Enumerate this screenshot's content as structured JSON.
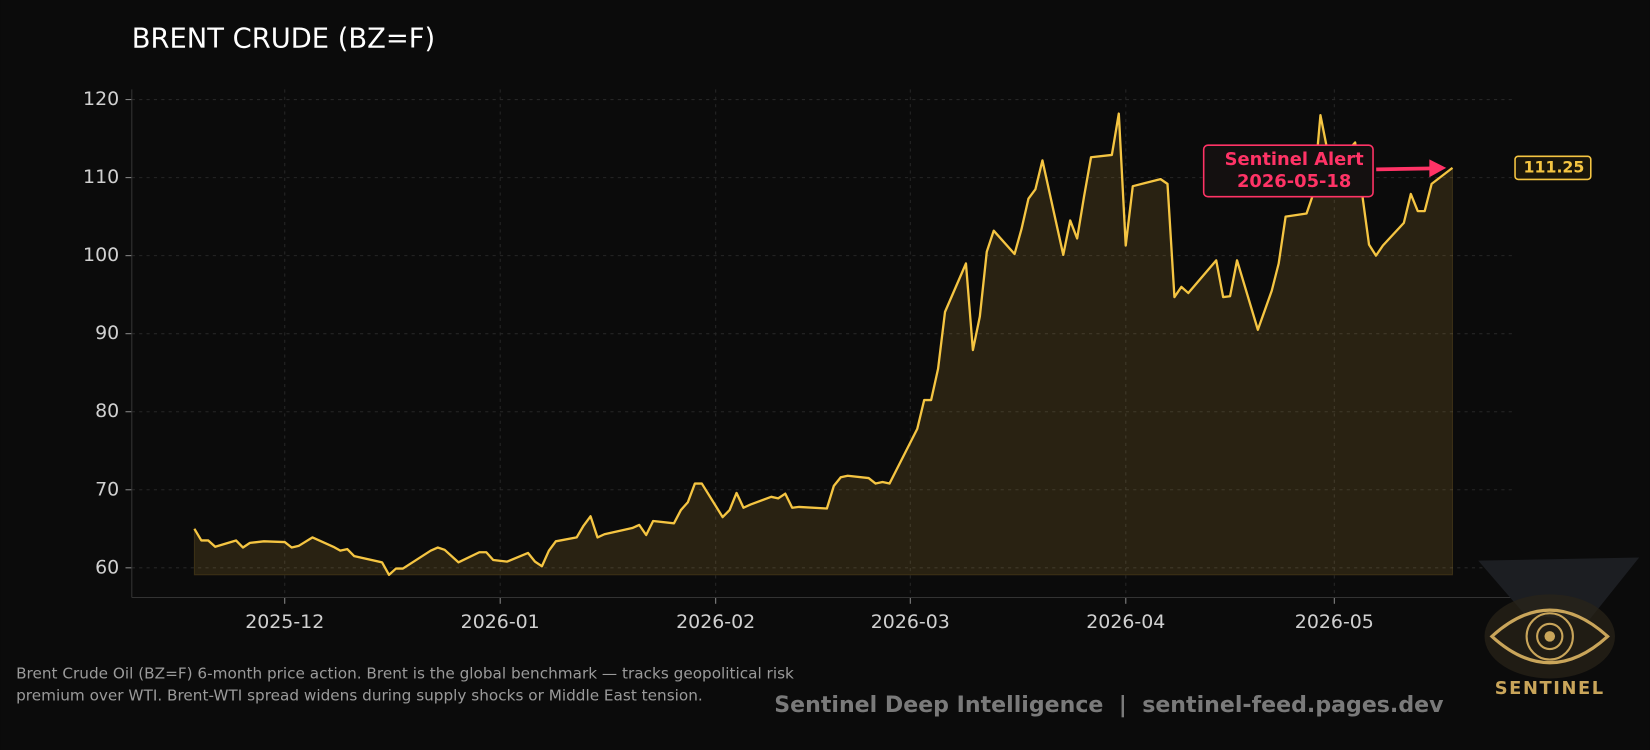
{
  "chart_data": {
    "type": "line",
    "title": "BRENT CRUDE (BZ=F)",
    "color": "#f5c542",
    "x": [
      "2025-11-18",
      "2025-11-19",
      "2025-11-20",
      "2025-11-21",
      "2025-11-24",
      "2025-11-25",
      "2025-11-26",
      "2025-11-28",
      "2025-12-01",
      "2025-12-02",
      "2025-12-03",
      "2025-12-05",
      "2025-12-08",
      "2025-12-09",
      "2025-12-10",
      "2025-12-11",
      "2025-12-15",
      "2025-12-16",
      "2025-12-17",
      "2025-12-18",
      "2025-12-22",
      "2025-12-23",
      "2025-12-24",
      "2025-12-26",
      "2025-12-29",
      "2025-12-30",
      "2025-12-31",
      "2026-01-02",
      "2026-01-05",
      "2026-01-06",
      "2026-01-07",
      "2026-01-08",
      "2026-01-09",
      "2026-01-12",
      "2026-01-13",
      "2026-01-14",
      "2026-01-15",
      "2026-01-16",
      "2026-01-20",
      "2026-01-21",
      "2026-01-22",
      "2026-01-23",
      "2026-01-26",
      "2026-01-27",
      "2026-01-28",
      "2026-01-29",
      "2026-01-30",
      "2026-02-02",
      "2026-02-03",
      "2026-02-04",
      "2026-02-05",
      "2026-02-06",
      "2026-02-09",
      "2026-02-10",
      "2026-02-11",
      "2026-02-12",
      "2026-02-13",
      "2026-02-17",
      "2026-02-18",
      "2026-02-19",
      "2026-02-20",
      "2026-02-23",
      "2026-02-24",
      "2026-02-25",
      "2026-02-26",
      "2026-03-02",
      "2026-03-03",
      "2026-03-04",
      "2026-03-05",
      "2026-03-06",
      "2026-03-09",
      "2026-03-10",
      "2026-03-11",
      "2026-03-12",
      "2026-03-13",
      "2026-03-16",
      "2026-03-17",
      "2026-03-18",
      "2026-03-19",
      "2026-03-20",
      "2026-03-23",
      "2026-03-24",
      "2026-03-25",
      "2026-03-26",
      "2026-03-27",
      "2026-03-30",
      "2026-03-31",
      "2026-04-01",
      "2026-04-02",
      "2026-04-06",
      "2026-04-07",
      "2026-04-08",
      "2026-04-09",
      "2026-04-10",
      "2026-04-14",
      "2026-04-15",
      "2026-04-16",
      "2026-04-17",
      "2026-04-20",
      "2026-04-21",
      "2026-04-22",
      "2026-04-23",
      "2026-04-24",
      "2026-04-27",
      "2026-04-28",
      "2026-04-29",
      "2026-04-30",
      "2026-05-01",
      "2026-05-04",
      "2026-05-06",
      "2026-05-07",
      "2026-05-08",
      "2026-05-11",
      "2026-05-12",
      "2026-05-13",
      "2026-05-14",
      "2026-05-15",
      "2026-05-18"
    ],
    "values": [
      65.0,
      63.5,
      63.5,
      62.7,
      63.5,
      62.6,
      63.2,
      63.4,
      63.3,
      62.6,
      62.8,
      63.9,
      62.7,
      62.2,
      62.4,
      61.5,
      60.7,
      59.1,
      59.9,
      59.9,
      62.2,
      62.6,
      62.3,
      60.7,
      62.0,
      62.0,
      61.0,
      60.8,
      61.9,
      60.8,
      60.2,
      62.2,
      63.4,
      63.9,
      65.4,
      66.6,
      63.9,
      64.3,
      65.1,
      65.5,
      64.2,
      66.0,
      65.7,
      67.4,
      68.4,
      70.8,
      70.8,
      66.5,
      67.4,
      69.6,
      67.7,
      68.1,
      69.1,
      68.9,
      69.5,
      67.7,
      67.8,
      67.6,
      70.5,
      71.6,
      71.8,
      71.5,
      70.8,
      71.0,
      70.8,
      77.8,
      81.5,
      81.5,
      85.5,
      92.8,
      99.0,
      87.9,
      92.2,
      100.5,
      103.2,
      100.2,
      103.4,
      107.3,
      108.5,
      112.2,
      100.1,
      104.5,
      102.2,
      107.6,
      112.6,
      112.9,
      118.2,
      101.3,
      108.9,
      109.8,
      109.2,
      94.7,
      96.0,
      95.2,
      99.4,
      94.7,
      94.8,
      99.4,
      90.5,
      93.0,
      95.5,
      99.0,
      105.0,
      105.4,
      108.0,
      118.0,
      113.5,
      111.5,
      114.5,
      101.4,
      100.0,
      101.3,
      104.2,
      107.9,
      105.7,
      105.7,
      109.2,
      111.25
    ],
    "xlim": [
      "2025-11-09",
      "2026-05-27"
    ],
    "xticks": [
      "2025-12",
      "2026-01",
      "2026-02",
      "2026-03",
      "2026-04",
      "2026-05"
    ],
    "ylim": [
      56.2,
      121.3
    ],
    "yticks": [
      60,
      70,
      80,
      90,
      100,
      110,
      120
    ],
    "grid": true,
    "area_fill": true,
    "annotation": {
      "text": "Sentinel Alert",
      "color": "#ff3366"
    },
    "description": "Brent Crude Oil (BZ=F) 6-month price action. Brent is the global benchmark — tracks geopolitical risk premium over WTI. Brent-WTI spread widens during supply shocks or Middle East tension.",
    "footer": "Sentinel Deep Intelligence  |  sentinel-feed.pages.dev",
    "logo_text": "SENTINEL"
  }
}
